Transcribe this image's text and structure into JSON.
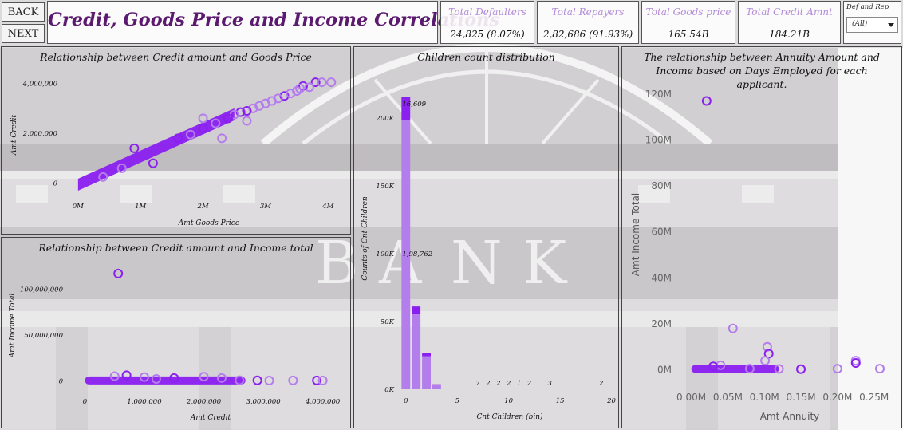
{
  "nav": {
    "back_label": "BACK",
    "next_label": "NEXT"
  },
  "header": {
    "title": "Credit, Goods Price and Income Correlations"
  },
  "kpis": [
    {
      "label": "Total Defaulters",
      "value": "24,825 (8.07%)"
    },
    {
      "label": "Total  Repayers",
      "value": "2,82,686 (91.93%)"
    },
    {
      "label": "Total Goods price",
      "value": "165.54B"
    },
    {
      "label": "Total Credit Amnt",
      "value": "184.21B"
    }
  ],
  "filter": {
    "label": "Def and Rep",
    "value": "(All)"
  },
  "colors": {
    "accent": "#8a1ff0",
    "accent_light": "#b47dec",
    "title": "#5b1a6f",
    "kpi_label": "#b38bd6"
  },
  "chart_data": [
    {
      "id": "credit_vs_goods",
      "type": "scatter",
      "title": "Relationship between Credit amount and Goods Price",
      "xlabel": "Amt Goods Price",
      "ylabel": "Amt Credit",
      "xlim": [
        -100000,
        4200000
      ],
      "ylim": [
        -300000,
        4500000
      ],
      "xticks": [
        0,
        1000000,
        2000000,
        3000000,
        4000000
      ],
      "xtick_labels": [
        "0M",
        "1M",
        "2M",
        "3M",
        "4M"
      ],
      "yticks": [
        0,
        2000000,
        4000000
      ],
      "ytick_labels": [
        "0",
        "2,000,000",
        "4,000,000"
      ],
      "points": [
        [
          3800000,
          4050000
        ],
        [
          3900000,
          4050000
        ],
        [
          4050000,
          4050000
        ],
        [
          3600000,
          3900000
        ],
        [
          3700000,
          3850000
        ],
        [
          3500000,
          3700000
        ],
        [
          3300000,
          3500000
        ],
        [
          3100000,
          3300000
        ],
        [
          2800000,
          3000000
        ],
        [
          2600000,
          2850000
        ],
        [
          3200000,
          3400000
        ],
        [
          2900000,
          3100000
        ],
        [
          2700000,
          2900000
        ],
        [
          3000000,
          3200000
        ],
        [
          2500000,
          2750000
        ],
        [
          2400000,
          2600000
        ],
        [
          3400000,
          3600000
        ],
        [
          2200000,
          2400000
        ],
        [
          2000000,
          2200000
        ],
        [
          3550000,
          3800000
        ],
        [
          1800000,
          1950000
        ],
        [
          1600000,
          1800000
        ],
        [
          400000,
          250000
        ],
        [
          700000,
          600000
        ],
        [
          1200000,
          800000
        ],
        [
          2300000,
          1800000
        ],
        [
          2700000,
          2500000
        ],
        [
          900000,
          1400000
        ],
        [
          2000000,
          2600000
        ]
      ],
      "trend": {
        "x": [
          0,
          2500000
        ],
        "y": [
          0,
          2700000
        ],
        "band": 300000
      }
    },
    {
      "id": "credit_vs_income",
      "type": "scatter",
      "title": "Relationship between Credit amount and Income total",
      "xlabel": "Amt Credit",
      "ylabel": "Amt Income Total",
      "xlim": [
        -100000,
        4300000
      ],
      "ylim": [
        -5000000,
        130000000
      ],
      "xticks": [
        0,
        1000000,
        2000000,
        3000000,
        4000000
      ],
      "xtick_labels": [
        "0",
        "1,000,000",
        "2,000,000",
        "3,000,000",
        "4,000,000"
      ],
      "yticks": [
        0,
        50000000,
        100000000
      ],
      "ytick_labels": [
        "0",
        "50,000,000",
        "100,000,000"
      ],
      "points": [
        [
          560000,
          117000000
        ],
        [
          2000000,
          4500000
        ],
        [
          1000000,
          4000000
        ],
        [
          1500000,
          3000000
        ],
        [
          500000,
          5000000
        ],
        [
          2300000,
          3000000
        ],
        [
          3900000,
          300000
        ],
        [
          3100000,
          200000
        ],
        [
          3500000,
          300000
        ],
        [
          2900000,
          400000
        ],
        [
          2600000,
          500000
        ],
        [
          4000000,
          200000
        ],
        [
          700000,
          6000000
        ],
        [
          1200000,
          2000000
        ]
      ],
      "band": {
        "x": [
          0,
          2700000
        ],
        "y": 300000
      }
    },
    {
      "id": "children_count",
      "type": "bar",
      "title": "Children count distribution",
      "xlabel": "Cnt Children (bin)",
      "ylabel": "Counts of Cnt Children",
      "ylim": [
        0,
        220000
      ],
      "yticks": [
        0,
        50000,
        100000,
        150000,
        200000
      ],
      "ytick_labels": [
        "0K",
        "50K",
        "100K",
        "150K",
        "200K"
      ],
      "xticks": [
        0,
        5,
        10,
        15,
        20
      ],
      "xtick_labels": [
        "0",
        "5",
        "10",
        "15",
        "20"
      ],
      "xlim": [
        -1.5,
        21
      ],
      "bars": [
        {
          "x": 0,
          "repayers": 198762,
          "defaulters": 16609,
          "label_top": "16,609",
          "label_mid": "1,98,762"
        },
        {
          "x": 1,
          "repayers": 55700,
          "defaulters": 5400
        },
        {
          "x": 2,
          "repayers": 24400,
          "defaulters": 2300
        },
        {
          "x": 3,
          "repayers": 3400,
          "defaulters": 300
        }
      ],
      "small_labels": [
        {
          "x": 7,
          "label": "7"
        },
        {
          "x": 8,
          "label": "2"
        },
        {
          "x": 9,
          "label": "2"
        },
        {
          "x": 10,
          "label": "2"
        },
        {
          "x": 11,
          "label": "1"
        },
        {
          "x": 12,
          "label": "2"
        },
        {
          "x": 14,
          "label": "3"
        },
        {
          "x": 19,
          "label": "2"
        }
      ]
    },
    {
      "id": "annuity_vs_income",
      "type": "scatter",
      "title": "The relationship between Annuity Amount and Income based on Days Employed for each applicant.",
      "xlabel": "Amt Annuity",
      "ylabel": "Amt Income Total",
      "xlim": [
        -0.005,
        0.27
      ],
      "ylim": [
        -5,
        130
      ],
      "xticks": [
        0,
        0.05,
        0.1,
        0.15,
        0.2,
        0.25
      ],
      "xtick_labels": [
        "0.00M",
        "0.05M",
        "0.10M",
        "0.15M",
        "0.20M",
        "0.25M"
      ],
      "yticks": [
        0,
        20,
        40,
        60,
        80,
        100,
        120
      ],
      "ytick_labels": [
        "0M",
        "20M",
        "40M",
        "60M",
        "80M",
        "100M",
        "120M"
      ],
      "points": [
        [
          0.021,
          117
        ],
        [
          0.057,
          18
        ],
        [
          0.104,
          10
        ],
        [
          0.106,
          7
        ],
        [
          0.101,
          4
        ],
        [
          0.225,
          4
        ],
        [
          0.225,
          3
        ],
        [
          0.258,
          0.5
        ],
        [
          0.2,
          0.5
        ],
        [
          0.15,
          0.3
        ],
        [
          0.08,
          0.5
        ],
        [
          0.04,
          2
        ],
        [
          0.03,
          1.5
        ],
        [
          0.12,
          0.4
        ]
      ],
      "band": {
        "x": [
          0,
          0.12
        ],
        "y": 0.4
      }
    }
  ]
}
